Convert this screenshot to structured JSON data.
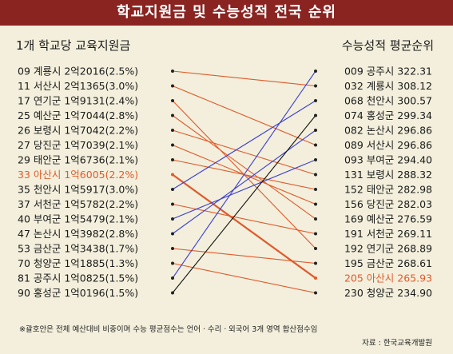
{
  "title": "학교지원금 및 수능성적 전국 순위",
  "footnote": "※괄호안은 전체 예산대비 비중이며 수능 평균점수는 언어ㆍ수리ㆍ외국어 3개 영역 합산점수임",
  "source": "자료 : 한국교육개발원",
  "colors": {
    "title_bg": "#8a2421",
    "background": "#f3efdc",
    "highlight": "#e05a2b",
    "text": "#1a1a1a"
  },
  "chart_data": {
    "type": "slopegraph",
    "left_header": "1개 학교당 교육지원금",
    "right_header": "수능성적 평균순위",
    "left": [
      {
        "rank": "09",
        "name": "계룡시",
        "amount": "2억2016",
        "share": "(2.5%)",
        "highlight": false
      },
      {
        "rank": "11",
        "name": "서산시",
        "amount": "2억1365",
        "share": "(3.0%)",
        "highlight": false
      },
      {
        "rank": "17",
        "name": "연기군",
        "amount": "1억9131",
        "share": "(2.4%)",
        "highlight": false
      },
      {
        "rank": "25",
        "name": "예산군",
        "amount": "1억7044",
        "share": "(2.8%)",
        "highlight": false
      },
      {
        "rank": "26",
        "name": "보령시",
        "amount": "1억7042",
        "share": "(2.2%)",
        "highlight": false
      },
      {
        "rank": "27",
        "name": "당진군",
        "amount": "1억7039",
        "share": "(2.1%)",
        "highlight": false
      },
      {
        "rank": "29",
        "name": "태안군",
        "amount": "1억6736",
        "share": "(2.1%)",
        "highlight": false
      },
      {
        "rank": "33",
        "name": "아산시",
        "amount": "1억6005",
        "share": "(2.2%)",
        "highlight": true
      },
      {
        "rank": "35",
        "name": "천안시",
        "amount": "1억5917",
        "share": "(3.0%)",
        "highlight": false
      },
      {
        "rank": "37",
        "name": "서천군",
        "amount": "1억5782",
        "share": "(2.2%)",
        "highlight": false
      },
      {
        "rank": "40",
        "name": "부여군",
        "amount": "1억5479",
        "share": "(2.1%)",
        "highlight": false
      },
      {
        "rank": "47",
        "name": "논산시",
        "amount": "1억3982",
        "share": "(2.8%)",
        "highlight": false
      },
      {
        "rank": "53",
        "name": "금산군",
        "amount": "1억3438",
        "share": "(1.7%)",
        "highlight": false
      },
      {
        "rank": "70",
        "name": "청양군",
        "amount": "1억1885",
        "share": "(1.3%)",
        "highlight": false
      },
      {
        "rank": "81",
        "name": "공주시",
        "amount": "1억0825",
        "share": "(1.5%)",
        "highlight": false
      },
      {
        "rank": "90",
        "name": "홍성군",
        "amount": "1억0196",
        "share": "(1.5%)",
        "highlight": false
      }
    ],
    "right": [
      {
        "rank": "009",
        "name": "공주시",
        "score": "322.31",
        "highlight": false
      },
      {
        "rank": "032",
        "name": "계룡시",
        "score": "308.12",
        "highlight": false
      },
      {
        "rank": "068",
        "name": "천안시",
        "score": "300.57",
        "highlight": false
      },
      {
        "rank": "074",
        "name": "홍성군",
        "score": "299.34",
        "highlight": false
      },
      {
        "rank": "082",
        "name": "논산시",
        "score": "296.86",
        "highlight": false
      },
      {
        "rank": "089",
        "name": "서산시",
        "score": "296.86",
        "highlight": false
      },
      {
        "rank": "093",
        "name": "부여군",
        "score": "294.40",
        "highlight": false
      },
      {
        "rank": "131",
        "name": "보령시",
        "score": "288.32",
        "highlight": false
      },
      {
        "rank": "152",
        "name": "태안군",
        "score": "282.98",
        "highlight": false
      },
      {
        "rank": "156",
        "name": "당진군",
        "score": "282.03",
        "highlight": false
      },
      {
        "rank": "169",
        "name": "예산군",
        "score": "276.59",
        "highlight": false
      },
      {
        "rank": "191",
        "name": "서천군",
        "score": "269.11",
        "highlight": false
      },
      {
        "rank": "192",
        "name": "연기군",
        "score": "268.89",
        "highlight": false
      },
      {
        "rank": "195",
        "name": "금산군",
        "score": "268.61",
        "highlight": false
      },
      {
        "rank": "205",
        "name": "아산시",
        "score": "265.93",
        "highlight": true
      },
      {
        "rank": "230",
        "name": "청양군",
        "score": "234.90",
        "highlight": false
      }
    ],
    "links": [
      {
        "left": "계룡시",
        "right": "계룡시",
        "color": "#e05a2b"
      },
      {
        "left": "서산시",
        "right": "서산시",
        "color": "#e05a2b"
      },
      {
        "left": "연기군",
        "right": "연기군",
        "color": "#e05a2b"
      },
      {
        "left": "예산군",
        "right": "예산군",
        "color": "#e05a2b"
      },
      {
        "left": "보령시",
        "right": "보령시",
        "color": "#e05a2b"
      },
      {
        "left": "당진군",
        "right": "당진군",
        "color": "#e05a2b"
      },
      {
        "left": "태안군",
        "right": "태안군",
        "color": "#e05a2b"
      },
      {
        "left": "아산시",
        "right": "아산시",
        "color": "#e05a2b"
      },
      {
        "left": "천안시",
        "right": "천안시",
        "color": "#3b3fd0"
      },
      {
        "left": "서천군",
        "right": "서천군",
        "color": "#e05a2b"
      },
      {
        "left": "부여군",
        "right": "부여군",
        "color": "#3b3fd0"
      },
      {
        "left": "논산시",
        "right": "논산시",
        "color": "#3b3fd0"
      },
      {
        "left": "금산군",
        "right": "금산군",
        "color": "#e05a2b"
      },
      {
        "left": "청양군",
        "right": "청양군",
        "color": "#e05a2b"
      },
      {
        "left": "공주시",
        "right": "공주시",
        "color": "#3b3fd0"
      },
      {
        "left": "홍성군",
        "right": "홍성군",
        "color": "#111111"
      }
    ]
  }
}
